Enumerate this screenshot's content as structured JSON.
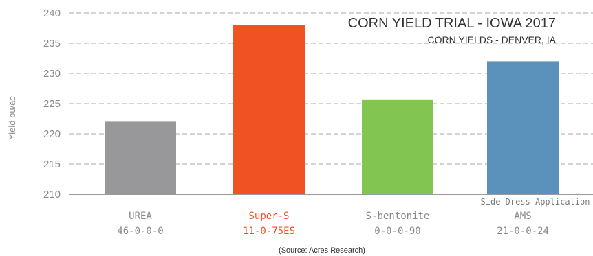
{
  "chart_data": {
    "type": "bar",
    "title": "CORN YIELD TRIAL - IOWA 2017",
    "subtitle": "CORN YIELDS - DENVER, IA",
    "ylabel": "Yield bu/ac",
    "xlabel": "",
    "ylim": [
      210,
      240
    ],
    "yticks": [
      210,
      215,
      220,
      225,
      230,
      235,
      240
    ],
    "grid": "horizontal dashed",
    "categories": [
      {
        "name": "UREA",
        "formula": "46-0-0-0",
        "value": 222,
        "color": "#98989a",
        "label_color": "#8a8a8a"
      },
      {
        "name": "Super-S",
        "formula": "11-0-75ES",
        "value": 238,
        "color": "#f05223",
        "label_color": "#f05223"
      },
      {
        "name": "S-bentonite",
        "formula": "0-0-0-90",
        "value": 225.7,
        "color": "#82c651",
        "label_color": "#8a8a8a"
      },
      {
        "name": "AMS",
        "formula": "21-0-0-24",
        "value": 232,
        "color": "#5b92bb",
        "label_color": "#8a8a8a"
      }
    ],
    "annotation": "Side Dress Application",
    "source": "(Source: Acres Research)"
  }
}
